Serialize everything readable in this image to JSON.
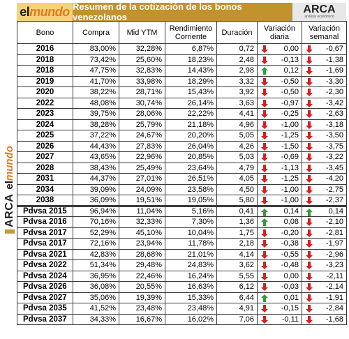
{
  "header": {
    "logo_left_el": "el",
    "logo_left_mundo": "mundo",
    "title": "Resumen de la cotización de los bonos venezolanos",
    "logo_right_big": "ARCA",
    "logo_right_small": "análisis económico"
  },
  "side_logo": {
    "arca": "ARCA",
    "el": "el",
    "mundo": "mundo"
  },
  "columns": [
    "Bono",
    "Compra",
    "Mid YTM",
    "Rendimiento Corriente",
    "Duración",
    "Variación diaria",
    "Variación semanal"
  ],
  "colors": {
    "up": "#3a9a3a",
    "down": "#d42020",
    "title_bg": "#c2922e",
    "logo_bg": "#f5d27a"
  },
  "rows": [
    {
      "bono": "2016",
      "compra": "83,00%",
      "ytm": "32,28%",
      "rend": "6,87%",
      "dur": "0,72",
      "vd": "0,00",
      "vd_dir": "down",
      "vs": "-0,67",
      "vs_dir": "down"
    },
    {
      "bono": "2018",
      "compra": "73,42%",
      "ytm": "25,60%",
      "rend": "18,23%",
      "dur": "2,48",
      "vd": "-0,13",
      "vd_dir": "down",
      "vs": "-1,38",
      "vs_dir": "down"
    },
    {
      "bono": "2018",
      "compra": "47,75%",
      "ytm": "32,83%",
      "rend": "14,43%",
      "dur": "2,98",
      "vd": "0,12",
      "vd_dir": "up",
      "vs": "-1,69",
      "vs_dir": "down"
    },
    {
      "bono": "2019",
      "compra": "41,70%",
      "ytm": "33,98%",
      "rend": "18,29%",
      "dur": "3,32",
      "vd": "-0,50",
      "vd_dir": "down",
      "vs": "-3,30",
      "vs_dir": "down"
    },
    {
      "bono": "2020",
      "compra": "38,22%",
      "ytm": "28,71%",
      "rend": "15,43%",
      "dur": "3,92",
      "vd": "-0,50",
      "vd_dir": "down",
      "vs": "-2,30",
      "vs_dir": "down"
    },
    {
      "bono": "2022",
      "compra": "48,08%",
      "ytm": "30,74%",
      "rend": "26,14%",
      "dur": "3,63",
      "vd": "-0,97",
      "vd_dir": "down",
      "vs": "-3,42",
      "vs_dir": "down"
    },
    {
      "bono": "2023",
      "compra": "39,75%",
      "ytm": "28,06%",
      "rend": "22,22%",
      "dur": "4,41",
      "vd": "-0,25",
      "vd_dir": "down",
      "vs": "-2,63",
      "vs_dir": "down"
    },
    {
      "bono": "2024",
      "compra": "38,28%",
      "ytm": "25,79%",
      "rend": "21,18%",
      "dur": "4,96",
      "vd": "-1,00",
      "vd_dir": "down",
      "vs": "-3,18",
      "vs_dir": "down"
    },
    {
      "bono": "2025",
      "compra": "37,22%",
      "ytm": "24,67%",
      "rend": "20,20%",
      "dur": "5,05",
      "vd": "-1,25",
      "vd_dir": "down",
      "vs": "-3,50",
      "vs_dir": "down"
    },
    {
      "bono": "2026",
      "compra": "44,43%",
      "ytm": "27,83%",
      "rend": "26,04%",
      "dur": "4,26",
      "vd": "-1,50",
      "vd_dir": "down",
      "vs": "-3,75",
      "vs_dir": "down"
    },
    {
      "bono": "2027",
      "compra": "43,65%",
      "ytm": "22,96%",
      "rend": "20,85%",
      "dur": "5,03",
      "vd": "-0,69",
      "vd_dir": "down",
      "vs": "-3,22",
      "vs_dir": "down"
    },
    {
      "bono": "2028",
      "compra": "38,43%",
      "ytm": "25,49%",
      "rend": "23,64%",
      "dur": "4,79",
      "vd": "-1,13",
      "vd_dir": "down",
      "vs": "-3,45",
      "vs_dir": "down"
    },
    {
      "bono": "2031",
      "compra": "44,37%",
      "ytm": "27,01%",
      "rend": "26,51%",
      "dur": "4,05",
      "vd": "-1,25",
      "vd_dir": "down",
      "vs": "-4,20",
      "vs_dir": "down"
    },
    {
      "bono": "2034",
      "compra": "39,09%",
      "ytm": "24,09%",
      "rend": "23,58%",
      "dur": "4,50",
      "vd": "-1,00",
      "vd_dir": "down",
      "vs": "-2,75",
      "vs_dir": "down"
    },
    {
      "bono": "2038",
      "compra": "36,09%",
      "ytm": "19,51%",
      "rend": "19,05%",
      "dur": "5,80",
      "vd": "-1,00",
      "vd_dir": "down",
      "vs": "-2,37",
      "vs_dir": "down"
    },
    {
      "bono": "Pdvsa 2015",
      "compra": "96,94%",
      "ytm": "11,04%",
      "rend": "5,16%",
      "dur": "0,41",
      "vd": "0,14",
      "vd_dir": "up",
      "vs": "0,14",
      "vs_dir": "up",
      "sep": true
    },
    {
      "bono": "Pdvsa 2016",
      "compra": "70,16%",
      "ytm": "32,33%",
      "rend": "7,30%",
      "dur": "1,36",
      "vd": "0,08",
      "vd_dir": "up",
      "vs": "-2,10",
      "vs_dir": "down"
    },
    {
      "bono": "Pdvsa 2017",
      "compra": "52,29%",
      "ytm": "45,10%",
      "rend": "10,04%",
      "dur": "1,75",
      "vd": "-0,20",
      "vd_dir": "down",
      "vs": "-2,81",
      "vs_dir": "down"
    },
    {
      "bono": "Pdvsa 2017",
      "compra": "72,16%",
      "ytm": "23,94%",
      "rend": "11,78%",
      "dur": "2,18",
      "vd": "-0,38",
      "vd_dir": "down",
      "vs": "-1,97",
      "vs_dir": "down"
    },
    {
      "bono": "Pdvsa 2021",
      "compra": "42,83%",
      "ytm": "28,68%",
      "rend": "21,01%",
      "dur": "4,14",
      "vd": "-0,55",
      "vd_dir": "down",
      "vs": "-2,96",
      "vs_dir": "down"
    },
    {
      "bono": "Pdvsa 2022",
      "compra": "51,34%",
      "ytm": "29,48%",
      "rend": "24,83%",
      "dur": "3,62",
      "vd": "-0,48",
      "vd_dir": "down",
      "vs": "-3,23",
      "vs_dir": "down"
    },
    {
      "bono": "Pdvsa 2024",
      "compra": "36,95%",
      "ytm": "22,46%",
      "rend": "16,24%",
      "dur": "5,55",
      "vd": "0,00",
      "vd_dir": "down",
      "vs": "-2,11",
      "vs_dir": "down"
    },
    {
      "bono": "Pdvsa 2026",
      "compra": "36,08%",
      "ytm": "20,55%",
      "rend": "16,63%",
      "dur": "6,12",
      "vd": "-0,03",
      "vd_dir": "down",
      "vs": "-2,14",
      "vs_dir": "down"
    },
    {
      "bono": "Pdvsa 2027",
      "compra": "35,06%",
      "ytm": "19,39%",
      "rend": "15,33%",
      "dur": "6,44",
      "vd": "0,01",
      "vd_dir": "up",
      "vs": "-1,91",
      "vs_dir": "down"
    },
    {
      "bono": "Pdvsa 2035",
      "compra": "41,52%",
      "ytm": "23,48%",
      "rend": "23,48%",
      "dur": "4,91",
      "vd": "-0,15",
      "vd_dir": "down",
      "vs": "-2,84",
      "vs_dir": "down"
    },
    {
      "bono": "Pdvsa 2037",
      "compra": "34,33%",
      "ytm": "16,67%",
      "rend": "16,02%",
      "dur": "7,06",
      "vd": "-0,11",
      "vd_dir": "down",
      "vs": "-1,68",
      "vs_dir": "down"
    }
  ]
}
